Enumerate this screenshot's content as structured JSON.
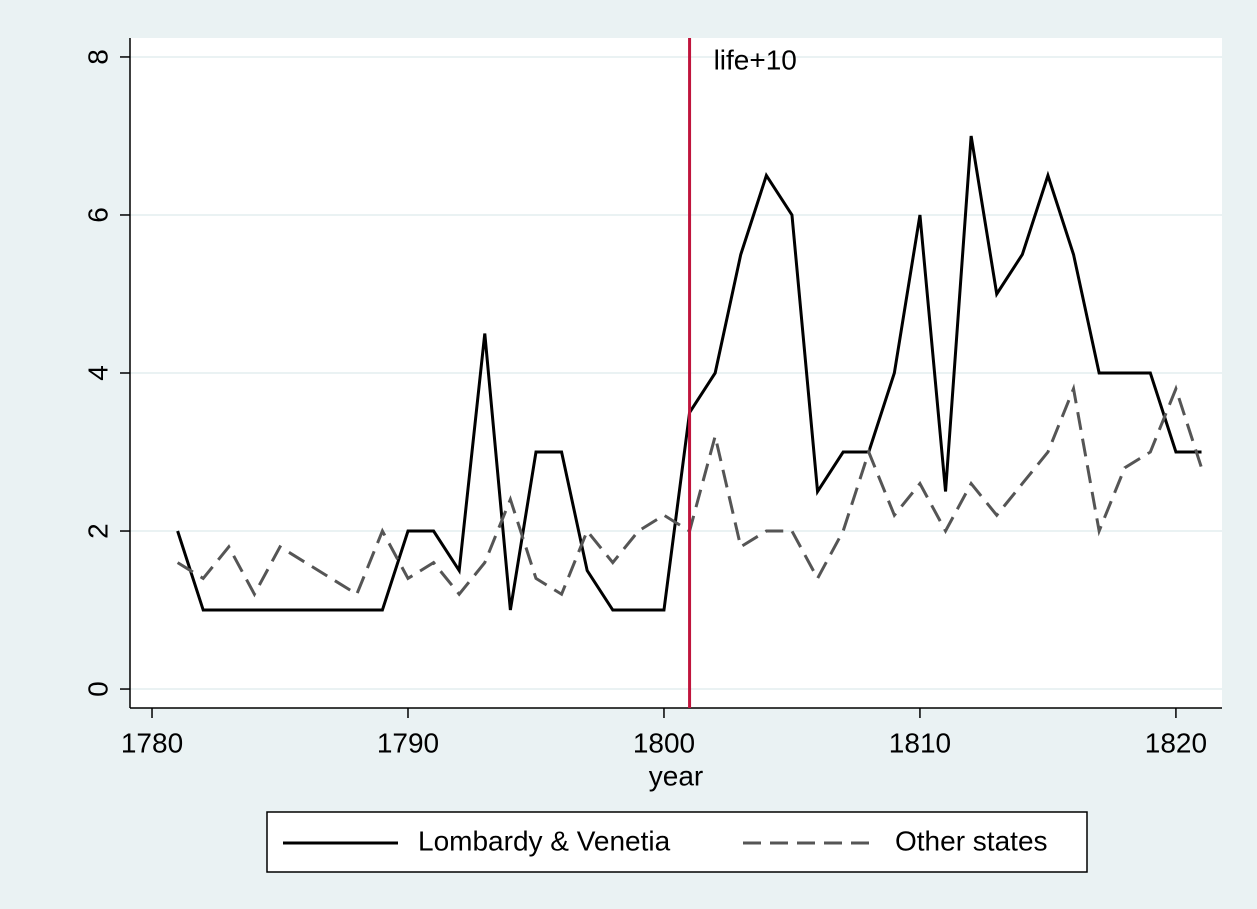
{
  "chart_data": {
    "type": "line",
    "x_label": "year",
    "x": [
      1781,
      1782,
      1783,
      1784,
      1785,
      1786,
      1787,
      1788,
      1789,
      1790,
      1791,
      1792,
      1793,
      1794,
      1795,
      1796,
      1797,
      1798,
      1799,
      1800,
      1801,
      1802,
      1803,
      1804,
      1805,
      1806,
      1807,
      1808,
      1809,
      1810,
      1811,
      1812,
      1813,
      1814,
      1815,
      1816,
      1817,
      1818,
      1819,
      1820,
      1821
    ],
    "series": [
      {
        "name": "Lombardy & Venetia",
        "color": "#000000",
        "dash": "solid",
        "values": [
          2,
          1,
          1,
          1,
          1,
          1,
          1,
          1,
          1,
          2,
          2,
          1.5,
          4.5,
          1,
          3,
          3,
          1.5,
          1,
          1,
          1,
          3.5,
          4,
          5.5,
          6.5,
          6,
          2.5,
          3,
          3,
          4,
          6,
          2.5,
          7,
          5,
          5.5,
          6.5,
          5.5,
          4,
          4,
          4,
          3,
          3
        ]
      },
      {
        "name": "Other states",
        "color": "#555555",
        "dash": "dashed",
        "values": [
          1.6,
          1.4,
          1.8,
          1.2,
          1.8,
          1.6,
          1.4,
          1.2,
          2,
          1.4,
          1.6,
          1.2,
          1.6,
          2.4,
          1.4,
          1.2,
          2,
          1.6,
          2,
          2.2,
          2,
          3.2,
          1.8,
          2,
          2,
          1.4,
          2,
          3,
          2.2,
          2.6,
          2,
          2.6,
          2.2,
          2.6,
          3,
          3.8,
          2,
          2.8,
          3,
          3.8,
          2.8
        ]
      }
    ],
    "vline": {
      "x": 1801,
      "label": "life+10",
      "color": "#c0143c"
    },
    "xlim": [
      1779.14,
      1821.8
    ],
    "xticks": [
      1780,
      1790,
      1800,
      1810,
      1820
    ],
    "ylim": [
      -0.24,
      8.24
    ],
    "yticks": [
      0,
      2,
      4,
      6,
      8
    ],
    "grid": true,
    "legend": "bottom"
  }
}
